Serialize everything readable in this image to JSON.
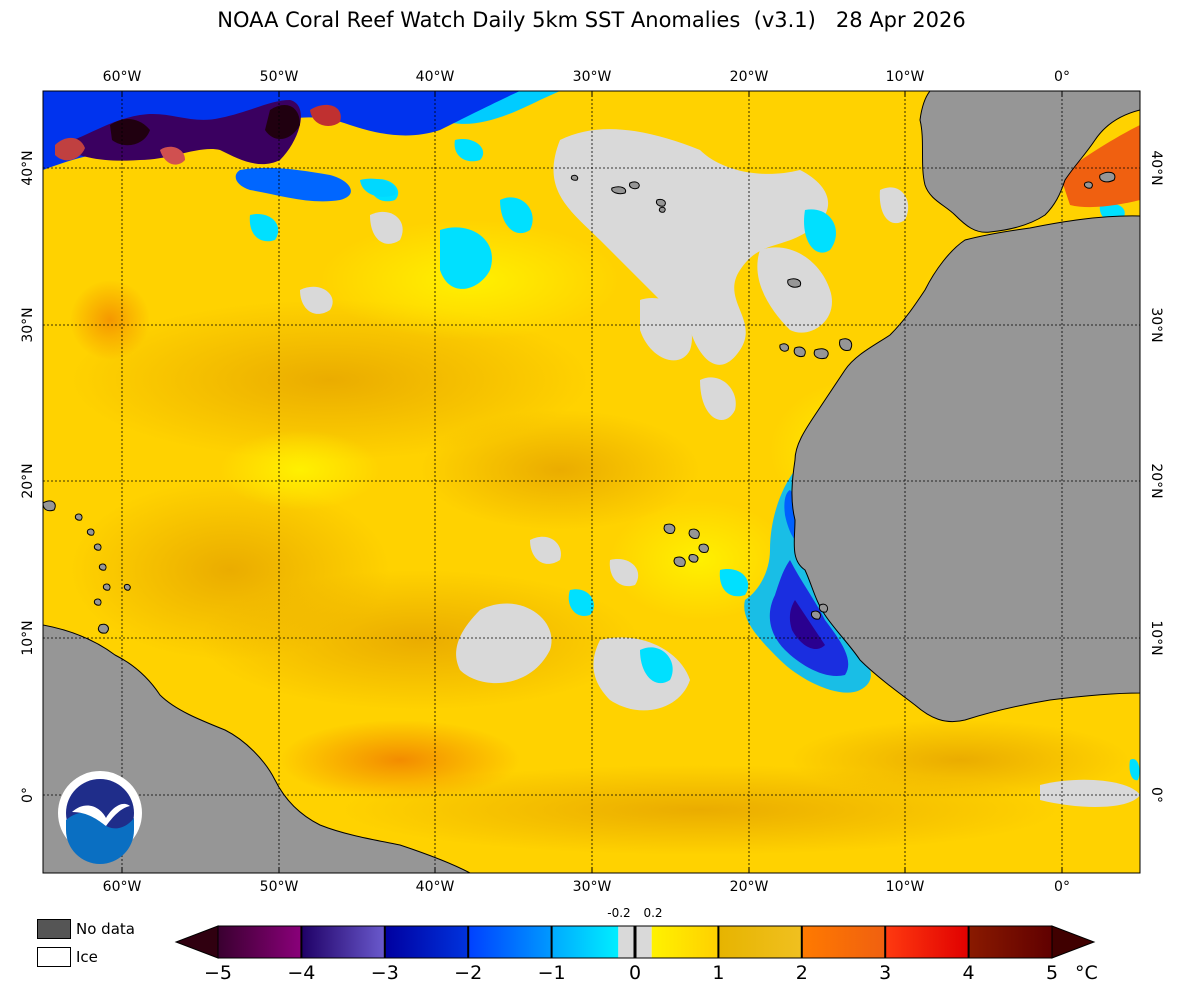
{
  "title": "NOAA Coral Reef Watch Daily 5km SST Anomalies  (v3.1)   28 Apr 2026",
  "colors": {
    "land": "#969696",
    "nodata": "#d9d9d9",
    "ocean_warm": "#ffd700",
    "ocean_hot": "#f0b400",
    "cold_light": "#00e5ff",
    "cold_mid": "#0044ff",
    "cold_deep": "#1a0070",
    "cold_extreme": "#3b0030",
    "hot_red": "#f05000"
  },
  "map": {
    "lon_labels": [
      "60°W",
      "50°W",
      "40°W",
      "30°W",
      "20°W",
      "10°W",
      "0°"
    ],
    "lat_labels": [
      "40°N",
      "30°N",
      "20°N",
      "10°N",
      "0°"
    ],
    "logo_icon": "noaa-logo-icon"
  },
  "legend": {
    "nodata_label": "No data",
    "ice_label": "Ice",
    "nodata_color": "#555555",
    "ice_color": "#ffffff"
  },
  "colorbar": {
    "ticks": [
      "−5",
      "−4",
      "−3",
      "−2",
      "−1",
      "0",
      "1",
      "2",
      "3",
      "4",
      "5"
    ],
    "small_ticks": [
      "-0.2",
      "0.2"
    ],
    "unit": "°C",
    "segments": [
      {
        "from": -5,
        "to": -4,
        "start": "#3a0030",
        "end": "#8a007a"
      },
      {
        "from": -4,
        "to": -3,
        "start": "#1f0066",
        "end": "#6a5acd"
      },
      {
        "from": -3,
        "to": -2,
        "start": "#0000a0",
        "end": "#0033dd"
      },
      {
        "from": -2,
        "to": -1,
        "start": "#0040ff",
        "end": "#0099ff"
      },
      {
        "from": -1,
        "to": -0.2,
        "start": "#00aaff",
        "end": "#00eeff"
      },
      {
        "from": -0.2,
        "to": 0.2,
        "start": "#d9d9d9",
        "end": "#d9d9d9"
      },
      {
        "from": 0.2,
        "to": 1,
        "start": "#fff200",
        "end": "#ffd000"
      },
      {
        "from": 1,
        "to": 2,
        "start": "#e6b400",
        "end": "#f0c020"
      },
      {
        "from": 2,
        "to": 3,
        "start": "#ff7a00",
        "end": "#f06010"
      },
      {
        "from": 3,
        "to": 4,
        "start": "#ff3a10",
        "end": "#e00000"
      },
      {
        "from": 4,
        "to": 5,
        "start": "#8a1a00",
        "end": "#600000"
      }
    ]
  }
}
